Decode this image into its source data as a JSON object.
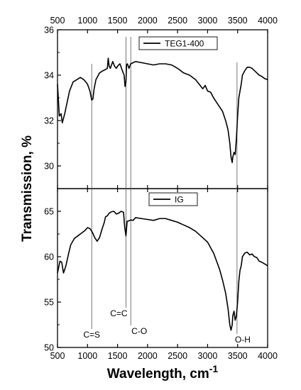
{
  "chart_data": {
    "type": "line",
    "xlabel": "Wavelength, cm",
    "xlabel_sup": "-1",
    "ylabel": "Transmission, %",
    "xlim": [
      500,
      4000
    ],
    "x_ticks": [
      500,
      1000,
      1500,
      2000,
      2500,
      3000,
      3500,
      4000
    ],
    "grid": false,
    "markers": [
      {
        "label": "C=S",
        "x": 1070
      },
      {
        "label": "C=C",
        "x": 1640
      },
      {
        "label": "C-O",
        "x": 1720
      },
      {
        "label": "O-H",
        "x": 3490
      }
    ],
    "panels": [
      {
        "name": "TEG1-400",
        "legend_position": "top-right",
        "ylim": [
          29,
          36
        ],
        "y_ticks": [
          30,
          32,
          34,
          36
        ],
        "series": [
          {
            "name": "TEG1-400",
            "x": [
              500,
              530,
              560,
              580,
              620,
              660,
              700,
              760,
              820,
              880,
              940,
              1000,
              1040,
              1070,
              1090,
              1110,
              1140,
              1200,
              1260,
              1300,
              1330,
              1345,
              1360,
              1380,
              1420,
              1450,
              1480,
              1500,
              1540,
              1580,
              1610,
              1625,
              1640,
              1650,
              1665,
              1690,
              1720,
              1760,
              1800,
              1900,
              2000,
              2100,
              2200,
              2300,
              2400,
              2500,
              2600,
              2700,
              2800,
              2860,
              2920,
              2960,
              3000,
              3050,
              3100,
              3150,
              3200,
              3250,
              3300,
              3340,
              3370,
              3390,
              3410,
              3420,
              3440,
              3460,
              3480,
              3500,
              3520,
              3540,
              3560,
              3580,
              3620,
              3660,
              3700,
              3740,
              3780,
              3820,
              3860,
              3900,
              3950,
              4000
            ],
            "y": [
              33.6,
              32.2,
              32.3,
              31.9,
              32.3,
              32.8,
              33.3,
              33.7,
              33.8,
              33.9,
              33.8,
              33.6,
              33.3,
              32.9,
              32.95,
              33.4,
              33.8,
              34.1,
              34.2,
              34.25,
              34.3,
              34.75,
              34.4,
              34.3,
              34.6,
              34.4,
              34.3,
              34.4,
              34.5,
              34.2,
              34.0,
              33.5,
              33.7,
              34.45,
              34.5,
              34.3,
              34.5,
              34.55,
              34.6,
              34.55,
              34.5,
              34.45,
              34.5,
              34.5,
              34.45,
              34.3,
              34.1,
              34.0,
              33.8,
              33.6,
              33.4,
              33.55,
              33.3,
              33.25,
              33.0,
              32.8,
              32.6,
              32.4,
              32.0,
              31.6,
              31.0,
              30.4,
              30.15,
              30.4,
              30.6,
              30.5,
              31.2,
              32.2,
              33.0,
              33.3,
              33.6,
              34.0,
              34.2,
              34.35,
              34.35,
              34.3,
              34.2,
              34.1,
              34.0,
              33.95,
              33.85,
              33.8
            ]
          }
        ]
      },
      {
        "name": "IG",
        "legend_position": "top-right",
        "ylim": [
          50,
          67.5
        ],
        "y_ticks": [
          50,
          55,
          60,
          65
        ],
        "series": [
          {
            "name": "IG",
            "x": [
              500,
              540,
              570,
              600,
              640,
              680,
              720,
              780,
              840,
              900,
              960,
              1000,
              1040,
              1080,
              1120,
              1160,
              1200,
              1240,
              1280,
              1300,
              1330,
              1360,
              1400,
              1440,
              1480,
              1520,
              1560,
              1600,
              1620,
              1640,
              1660,
              1690,
              1720,
              1760,
              1800,
              1900,
              2000,
              2100,
              2200,
              2300,
              2400,
              2500,
              2600,
              2700,
              2800,
              2900,
              3000,
              3050,
              3100,
              3150,
              3200,
              3250,
              3300,
              3340,
              3370,
              3390,
              3410,
              3420,
              3440,
              3460,
              3480,
              3500,
              3520,
              3540,
              3560,
              3580,
              3620,
              3660,
              3700,
              3740,
              3780,
              3820,
              3860,
              3900,
              3950,
              4000
            ],
            "y": [
              58.2,
              59.5,
              59.4,
              58.2,
              59.0,
              60.2,
              61.3,
              62.0,
              62.3,
              62.6,
              62.9,
              63.2,
              63.1,
              62.7,
              62.1,
              61.7,
              62.1,
              63.0,
              63.8,
              64.4,
              64.5,
              64.8,
              64.95,
              65.0,
              64.7,
              64.8,
              65.0,
              64.9,
              63.2,
              62.3,
              63.9,
              63.95,
              64.05,
              64.0,
              64.3,
              64.2,
              64.1,
              64.0,
              64.2,
              64.2,
              64.0,
              63.8,
              63.5,
              63.2,
              62.8,
              62.2,
              61.6,
              61.0,
              60.4,
              59.5,
              58.6,
              57.4,
              56.0,
              54.3,
              52.5,
              51.9,
              52.5,
              53.5,
              54.0,
              53.0,
              53.5,
              55.0,
              57.3,
              58.5,
              59.0,
              60.0,
              60.4,
              60.5,
              60.2,
              60.3,
              60.0,
              59.9,
              59.5,
              59.4,
              59.2,
              59.0
            ]
          }
        ]
      }
    ]
  }
}
